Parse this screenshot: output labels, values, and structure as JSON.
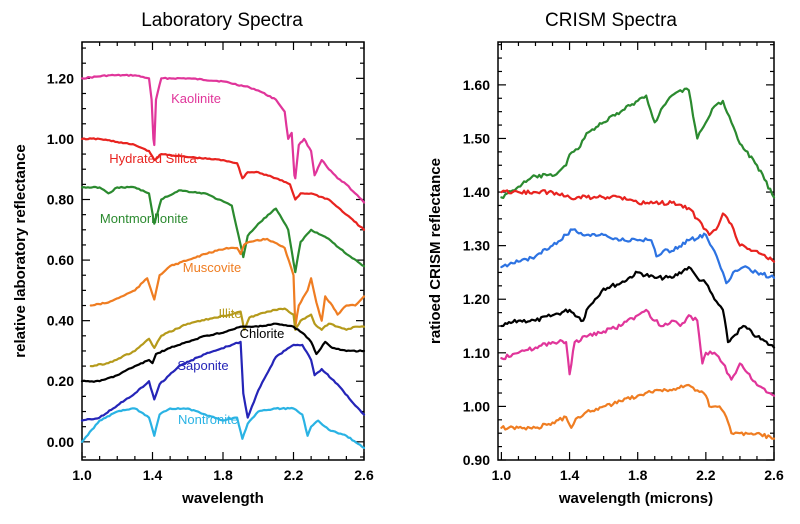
{
  "chart_data": [
    {
      "type": "line",
      "title": "Laboratory Spectra",
      "xlabel": "wavelength",
      "ylabel": "relative laboratory reflectance",
      "xlim": [
        1.0,
        2.6
      ],
      "ylim": [
        -0.06,
        1.32
      ],
      "xticks": [
        "1.0",
        "1.4",
        "1.8",
        "2.2",
        "2.6"
      ],
      "yticks": [
        "0.00",
        "0.20",
        "0.40",
        "0.60",
        "0.80",
        "1.00",
        "1.20"
      ],
      "grid": false,
      "series": [
        {
          "name": "Kaolinite",
          "color": "#e0359a",
          "x": [
            1.0,
            1.15,
            1.3,
            1.38,
            1.395,
            1.405,
            1.41,
            1.42,
            1.45,
            1.6,
            1.8,
            1.95,
            2.0,
            2.1,
            2.15,
            2.17,
            2.19,
            2.205,
            2.21,
            2.23,
            2.26,
            2.3,
            2.32,
            2.36,
            2.4,
            2.45,
            2.5,
            2.55,
            2.6
          ],
          "y": [
            1.2,
            1.21,
            1.21,
            1.2,
            1.13,
            1.0,
            0.98,
            1.13,
            1.2,
            1.2,
            1.19,
            1.17,
            1.16,
            1.13,
            1.09,
            1.0,
            1.02,
            0.88,
            0.87,
            0.98,
            1.0,
            0.96,
            0.88,
            0.93,
            0.9,
            0.87,
            0.85,
            0.82,
            0.79
          ]
        },
        {
          "name": "Hydrated Silica",
          "color": "#e8231f",
          "x": [
            1.0,
            1.1,
            1.2,
            1.3,
            1.38,
            1.41,
            1.45,
            1.6,
            1.8,
            1.88,
            1.91,
            1.94,
            2.0,
            2.1,
            2.18,
            2.21,
            2.24,
            2.3,
            2.4,
            2.5,
            2.6
          ],
          "y": [
            1.0,
            1.0,
            0.99,
            0.98,
            0.96,
            0.93,
            0.95,
            0.94,
            0.93,
            0.92,
            0.87,
            0.89,
            0.89,
            0.87,
            0.85,
            0.8,
            0.82,
            0.82,
            0.8,
            0.75,
            0.7
          ]
        },
        {
          "name": "Montmorillonite",
          "color": "#2b8a2f",
          "x": [
            1.0,
            1.1,
            1.15,
            1.2,
            1.3,
            1.38,
            1.41,
            1.45,
            1.55,
            1.7,
            1.85,
            1.9,
            1.915,
            1.94,
            2.0,
            2.1,
            2.17,
            2.21,
            2.24,
            2.3,
            2.4,
            2.5,
            2.6
          ],
          "y": [
            0.84,
            0.84,
            0.82,
            0.84,
            0.84,
            0.82,
            0.72,
            0.8,
            0.83,
            0.82,
            0.78,
            0.65,
            0.61,
            0.68,
            0.72,
            0.77,
            0.7,
            0.56,
            0.66,
            0.7,
            0.67,
            0.62,
            0.58
          ]
        },
        {
          "name": "Muscovite",
          "color": "#ef7d22",
          "x": [
            1.05,
            1.15,
            1.3,
            1.37,
            1.41,
            1.44,
            1.5,
            1.6,
            1.7,
            1.82,
            1.88,
            1.9,
            1.92,
            1.95,
            2.05,
            2.15,
            2.2,
            2.21,
            2.23,
            2.28,
            2.3,
            2.33,
            2.36,
            2.38,
            2.42,
            2.45,
            2.5,
            2.55,
            2.6
          ],
          "y": [
            0.45,
            0.46,
            0.5,
            0.54,
            0.47,
            0.55,
            0.58,
            0.6,
            0.62,
            0.64,
            0.64,
            0.62,
            0.65,
            0.66,
            0.67,
            0.64,
            0.55,
            0.38,
            0.45,
            0.5,
            0.54,
            0.46,
            0.4,
            0.48,
            0.45,
            0.42,
            0.45,
            0.45,
            0.48
          ]
        },
        {
          "name": "Illite",
          "color": "#b59a1b",
          "x": [
            1.05,
            1.15,
            1.3,
            1.38,
            1.41,
            1.45,
            1.6,
            1.75,
            1.85,
            1.9,
            1.92,
            1.95,
            2.05,
            2.15,
            2.2,
            2.21,
            2.24,
            2.3,
            2.32,
            2.36,
            2.4,
            2.45,
            2.5,
            2.55,
            2.6
          ],
          "y": [
            0.25,
            0.26,
            0.3,
            0.34,
            0.31,
            0.35,
            0.39,
            0.41,
            0.42,
            0.43,
            0.37,
            0.41,
            0.43,
            0.44,
            0.42,
            0.37,
            0.4,
            0.42,
            0.39,
            0.37,
            0.39,
            0.38,
            0.37,
            0.38,
            0.38
          ]
        },
        {
          "name": "Chlorite",
          "color": "#000000",
          "x": [
            1.0,
            1.1,
            1.2,
            1.3,
            1.38,
            1.4,
            1.42,
            1.5,
            1.6,
            1.7,
            1.8,
            1.9,
            1.95,
            2.0,
            2.1,
            2.2,
            2.25,
            2.3,
            2.33,
            2.38,
            2.42,
            2.5,
            2.6
          ],
          "y": [
            0.2,
            0.2,
            0.22,
            0.25,
            0.27,
            0.26,
            0.29,
            0.31,
            0.33,
            0.35,
            0.36,
            0.38,
            0.38,
            0.38,
            0.39,
            0.38,
            0.36,
            0.33,
            0.29,
            0.33,
            0.31,
            0.3,
            0.3
          ]
        },
        {
          "name": "Saponite",
          "color": "#2525b8",
          "x": [
            1.0,
            1.1,
            1.2,
            1.3,
            1.38,
            1.41,
            1.44,
            1.55,
            1.7,
            1.85,
            1.9,
            1.915,
            1.94,
            2.0,
            2.1,
            2.2,
            2.25,
            2.3,
            2.32,
            2.36,
            2.45,
            2.55,
            2.6
          ],
          "y": [
            0.07,
            0.08,
            0.12,
            0.16,
            0.2,
            0.14,
            0.19,
            0.25,
            0.29,
            0.32,
            0.33,
            0.16,
            0.08,
            0.17,
            0.28,
            0.32,
            0.32,
            0.27,
            0.22,
            0.24,
            0.19,
            0.12,
            0.09
          ]
        },
        {
          "name": "Nontronite",
          "color": "#2ab3e4",
          "x": [
            1.0,
            1.1,
            1.2,
            1.3,
            1.38,
            1.41,
            1.44,
            1.5,
            1.6,
            1.7,
            1.8,
            1.88,
            1.91,
            1.94,
            2.0,
            2.1,
            2.2,
            2.25,
            2.28,
            2.3,
            2.34,
            2.4,
            2.5,
            2.6
          ],
          "y": [
            0.0,
            0.07,
            0.1,
            0.11,
            0.08,
            0.02,
            0.09,
            0.11,
            0.11,
            0.09,
            0.07,
            0.08,
            0.01,
            0.06,
            0.1,
            0.11,
            0.11,
            0.09,
            0.02,
            0.05,
            0.07,
            0.04,
            0.02,
            -0.02
          ]
        }
      ]
    },
    {
      "type": "line",
      "title": "CRISM Spectra",
      "xlabel": "wavelength (microns)",
      "ylabel": "ratioed CRISM reflectance",
      "xlim": [
        0.98,
        2.6
      ],
      "ylim": [
        0.9,
        1.68
      ],
      "xticks": [
        "1.0",
        "1.4",
        "1.8",
        "2.2",
        "2.6"
      ],
      "yticks": [
        "0.90",
        "1.00",
        "1.10",
        "1.20",
        "1.30",
        "1.40",
        "1.50",
        "1.60"
      ],
      "grid": false,
      "series": [
        {
          "name": "",
          "color": "#2b8a2f",
          "x": [
            1.0,
            1.1,
            1.2,
            1.3,
            1.38,
            1.4,
            1.45,
            1.5,
            1.6,
            1.7,
            1.8,
            1.85,
            1.9,
            1.95,
            2.0,
            2.05,
            2.1,
            2.15,
            2.2,
            2.25,
            2.3,
            2.35,
            2.4,
            2.5,
            2.6
          ],
          "y": [
            1.39,
            1.41,
            1.43,
            1.43,
            1.45,
            1.47,
            1.48,
            1.51,
            1.53,
            1.55,
            1.57,
            1.58,
            1.53,
            1.56,
            1.58,
            1.59,
            1.59,
            1.5,
            1.53,
            1.56,
            1.57,
            1.53,
            1.49,
            1.45,
            1.39
          ]
        },
        {
          "name": "",
          "color": "#e8231f",
          "x": [
            1.0,
            1.1,
            1.2,
            1.3,
            1.4,
            1.5,
            1.6,
            1.7,
            1.8,
            1.9,
            2.0,
            2.1,
            2.15,
            2.2,
            2.22,
            2.26,
            2.3,
            2.35,
            2.4,
            2.5,
            2.6
          ],
          "y": [
            1.4,
            1.4,
            1.4,
            1.4,
            1.39,
            1.39,
            1.39,
            1.39,
            1.38,
            1.38,
            1.38,
            1.37,
            1.35,
            1.33,
            1.32,
            1.33,
            1.36,
            1.34,
            1.3,
            1.29,
            1.27
          ]
        },
        {
          "name": "",
          "color": "#2d73e2",
          "x": [
            1.0,
            1.1,
            1.2,
            1.3,
            1.38,
            1.42,
            1.5,
            1.6,
            1.7,
            1.8,
            1.88,
            1.91,
            1.95,
            2.0,
            2.1,
            2.2,
            2.25,
            2.3,
            2.32,
            2.36,
            2.42,
            2.5,
            2.6
          ],
          "y": [
            1.26,
            1.27,
            1.28,
            1.3,
            1.32,
            1.33,
            1.32,
            1.32,
            1.31,
            1.31,
            1.31,
            1.28,
            1.29,
            1.29,
            1.31,
            1.32,
            1.29,
            1.25,
            1.23,
            1.25,
            1.26,
            1.25,
            1.24
          ]
        },
        {
          "name": "",
          "color": "#000000",
          "x": [
            1.0,
            1.1,
            1.2,
            1.3,
            1.4,
            1.48,
            1.5,
            1.55,
            1.6,
            1.7,
            1.8,
            1.9,
            2.0,
            2.1,
            2.15,
            2.2,
            2.25,
            2.3,
            2.33,
            2.36,
            2.42,
            2.5,
            2.6
          ],
          "y": [
            1.15,
            1.16,
            1.16,
            1.17,
            1.18,
            1.16,
            1.18,
            1.2,
            1.22,
            1.23,
            1.25,
            1.24,
            1.24,
            1.26,
            1.24,
            1.23,
            1.2,
            1.18,
            1.12,
            1.13,
            1.15,
            1.13,
            1.11
          ]
        },
        {
          "name": "",
          "color": "#e0359a",
          "x": [
            1.0,
            1.1,
            1.2,
            1.3,
            1.38,
            1.4,
            1.43,
            1.5,
            1.6,
            1.7,
            1.8,
            1.85,
            1.9,
            1.95,
            2.0,
            2.05,
            2.1,
            2.15,
            2.18,
            2.2,
            2.25,
            2.3,
            2.35,
            2.4,
            2.5,
            2.6
          ],
          "y": [
            1.09,
            1.1,
            1.11,
            1.12,
            1.12,
            1.06,
            1.12,
            1.13,
            1.14,
            1.15,
            1.17,
            1.18,
            1.16,
            1.15,
            1.16,
            1.15,
            1.17,
            1.16,
            1.08,
            1.1,
            1.1,
            1.08,
            1.05,
            1.08,
            1.04,
            1.02
          ]
        },
        {
          "name": "",
          "color": "#ef7d22",
          "x": [
            1.0,
            1.1,
            1.2,
            1.3,
            1.38,
            1.41,
            1.45,
            1.5,
            1.6,
            1.7,
            1.8,
            1.9,
            2.0,
            2.1,
            2.15,
            2.2,
            2.22,
            2.28,
            2.32,
            2.35,
            2.4,
            2.5,
            2.6
          ],
          "y": [
            0.96,
            0.96,
            0.96,
            0.97,
            0.98,
            0.96,
            0.98,
            0.99,
            1.0,
            1.01,
            1.02,
            1.03,
            1.03,
            1.04,
            1.03,
            1.02,
            1.0,
            1.0,
            0.98,
            0.95,
            0.95,
            0.95,
            0.94
          ]
        }
      ]
    }
  ]
}
